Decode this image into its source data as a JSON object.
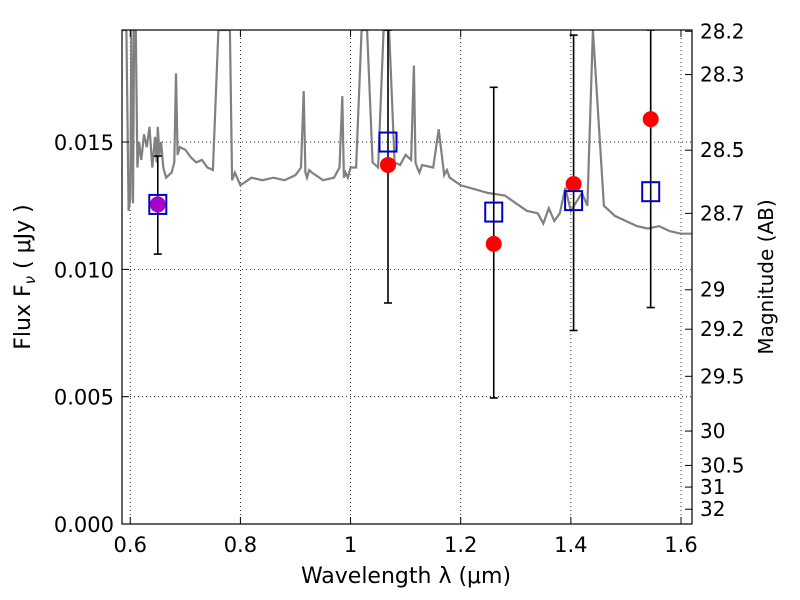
{
  "chart_data": {
    "type": "scatter",
    "xlabel": "Wavelength  λ (μm)",
    "ylabel": "Flux  F",
    "ylabel_sub": "ν",
    "ylabel_unit": " ( μJy )",
    "ylabel_right": "Magnitude (AB)",
    "xlim": [
      0.585,
      1.62
    ],
    "ylim": [
      0.0,
      0.0194
    ],
    "x_ticks": [
      0.6,
      0.8,
      1.0,
      1.2,
      1.4,
      1.6
    ],
    "x_tick_labels": [
      "0.6",
      "0.8",
      "1",
      "1.2",
      "1.4",
      "1.6"
    ],
    "y_ticks": [
      0.0,
      0.005,
      0.01,
      0.015
    ],
    "y_tick_labels": [
      "0.000",
      "0.005",
      "0.010",
      "0.015"
    ],
    "right_ticks": [
      {
        "label": "28.2",
        "flux": 0.01935
      },
      {
        "label": "28.3",
        "flux": 0.01765
      },
      {
        "label": "28.5",
        "flux": 0.01468
      },
      {
        "label": "28.7",
        "flux": 0.0122
      },
      {
        "label": "29",
        "flux": 0.0092
      },
      {
        "label": "29.2",
        "flux": 0.00765
      },
      {
        "label": "29.5",
        "flux": 0.0058
      },
      {
        "label": "30",
        "flux": 0.00365
      },
      {
        "label": "30.5",
        "flux": 0.0023
      },
      {
        "label": "31",
        "flux": 0.00145
      },
      {
        "label": "32",
        "flux": 0.00058
      }
    ],
    "grid": true,
    "grid_style": "dotted",
    "spectrum_color": "#808080",
    "observed_color": "#ff0000",
    "model_color": "#0000cc",
    "errorbar_color": "#000000",
    "blend_color": "#aa00cc",
    "spectrum": {
      "x": [
        0.585,
        0.593,
        0.597,
        0.6,
        0.602,
        0.605,
        0.607,
        0.61,
        0.613,
        0.616,
        0.62,
        0.625,
        0.63,
        0.635,
        0.64,
        0.645,
        0.648,
        0.65,
        0.653,
        0.656,
        0.66,
        0.665,
        0.67,
        0.675,
        0.68,
        0.683,
        0.686,
        0.69,
        0.7,
        0.71,
        0.72,
        0.73,
        0.74,
        0.75,
        0.76,
        0.77,
        0.775,
        0.778,
        0.781,
        0.785,
        0.79,
        0.8,
        0.82,
        0.84,
        0.86,
        0.88,
        0.9,
        0.91,
        0.915,
        0.918,
        0.921,
        0.925,
        0.93,
        0.95,
        0.97,
        0.98,
        0.985,
        0.988,
        0.991,
        0.995,
        1.0,
        1.01,
        1.02,
        1.025,
        1.03,
        1.04,
        1.05,
        1.06,
        1.07,
        1.08,
        1.09,
        1.1,
        1.11,
        1.115,
        1.118,
        1.121,
        1.125,
        1.13,
        1.15,
        1.16,
        1.17,
        1.175,
        1.18,
        1.2,
        1.25,
        1.28,
        1.3,
        1.32,
        1.34,
        1.35,
        1.36,
        1.37,
        1.38,
        1.39,
        1.4,
        1.42,
        1.43,
        1.44,
        1.46,
        1.48,
        1.5,
        1.52,
        1.54,
        1.56,
        1.58,
        1.6,
        1.62
      ],
      "y": [
        0.0194,
        0.0194,
        0.0123,
        0.0128,
        0.0194,
        0.0126,
        0.0194,
        0.0194,
        0.014,
        0.015,
        0.0143,
        0.0153,
        0.0148,
        0.0156,
        0.014,
        0.0152,
        0.0142,
        0.0156,
        0.0145,
        0.015,
        0.014,
        0.0136,
        0.0137,
        0.0138,
        0.0142,
        0.0177,
        0.0145,
        0.0148,
        0.0147,
        0.0144,
        0.0142,
        0.0143,
        0.014,
        0.0139,
        0.0194,
        0.0194,
        0.0194,
        0.0194,
        0.0194,
        0.0135,
        0.0138,
        0.0133,
        0.0136,
        0.0135,
        0.0136,
        0.0135,
        0.0137,
        0.014,
        0.017,
        0.0138,
        0.0136,
        0.0139,
        0.0138,
        0.0135,
        0.0136,
        0.014,
        0.0168,
        0.0136,
        0.0138,
        0.0136,
        0.014,
        0.014,
        0.0194,
        0.0194,
        0.0194,
        0.0142,
        0.014,
        0.0194,
        0.0194,
        0.0142,
        0.0141,
        0.0145,
        0.0143,
        0.018,
        0.0142,
        0.014,
        0.0138,
        0.0141,
        0.014,
        0.0155,
        0.0137,
        0.0139,
        0.0136,
        0.0133,
        0.013,
        0.0129,
        0.0126,
        0.0123,
        0.0122,
        0.0118,
        0.0124,
        0.0119,
        0.0122,
        0.0132,
        0.0123,
        0.013,
        0.0125,
        0.0194,
        0.0125,
        0.0121,
        0.0119,
        0.0117,
        0.0116,
        0.0117,
        0.0115,
        0.0114,
        0.0114
      ]
    },
    "observed": [
      {
        "x": 0.65,
        "y": 0.01255,
        "yerr_low": 0.0106,
        "yerr_high": 0.01445
      },
      {
        "x": 1.068,
        "y": 0.0141,
        "yerr_low": 0.00868,
        "yerr_high": 0.0194
      },
      {
        "x": 1.26,
        "y": 0.011,
        "yerr_low": 0.00495,
        "yerr_high": 0.01715
      },
      {
        "x": 1.405,
        "y": 0.01335,
        "yerr_low": 0.0076,
        "yerr_high": 0.0192
      },
      {
        "x": 1.545,
        "y": 0.0159,
        "yerr_low": 0.0085,
        "yerr_high": 0.0194
      }
    ],
    "model": [
      {
        "x": 0.65,
        "y": 0.01255
      },
      {
        "x": 1.068,
        "y": 0.015
      },
      {
        "x": 1.26,
        "y": 0.01225
      },
      {
        "x": 1.405,
        "y": 0.0127
      },
      {
        "x": 1.545,
        "y": 0.01305
      }
    ]
  }
}
